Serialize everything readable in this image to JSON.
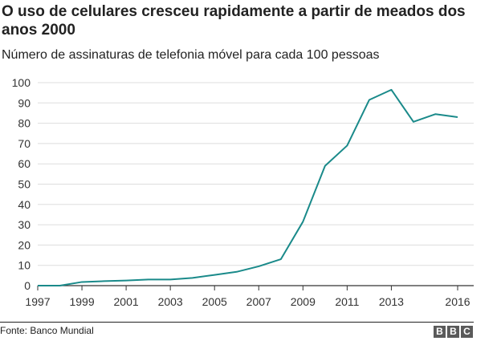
{
  "header": {
    "title": "O uso de celulares cresceu rapidamente a partir de meados dos anos 2000",
    "subtitle": "Número de assinaturas de telefonia móvel para cada 100 pessoas"
  },
  "footer": {
    "source": "Fonte: Banco Mundial",
    "logo_letters": [
      "B",
      "B",
      "C"
    ]
  },
  "chart_data": {
    "type": "line",
    "title": "O uso de celulares cresceu rapidamente a partir de meados dos anos 2000",
    "subtitle": "Número de assinaturas de telefonia móvel para cada 100 pessoas",
    "xlabel": "",
    "ylabel": "",
    "x": [
      1997,
      1998,
      1999,
      2000,
      2001,
      2002,
      2003,
      2004,
      2005,
      2006,
      2007,
      2008,
      2009,
      2010,
      2011,
      2012,
      2013,
      2014,
      2015,
      2016
    ],
    "series": [
      {
        "values": [
          0,
          0,
          1.8,
          2.2,
          2.5,
          3,
          3,
          3.8,
          5.3,
          6.8,
          9.5,
          13,
          31.5,
          59,
          69,
          91.5,
          96.5,
          80.7,
          84.5,
          83
        ]
      }
    ],
    "xticks": [
      "1997",
      "1999",
      "2001",
      "2003",
      "2005",
      "2007",
      "2009",
      "2011",
      "2013",
      "2016"
    ],
    "xlim": [
      1997,
      2016
    ],
    "yticks": [
      "0",
      "10",
      "20",
      "30",
      "40",
      "50",
      "60",
      "70",
      "80",
      "90",
      "100"
    ],
    "ylim": [
      0,
      100
    ],
    "grid": "horizontal",
    "line_color": "#1a8a8a",
    "grid_color": "#dddddd"
  }
}
